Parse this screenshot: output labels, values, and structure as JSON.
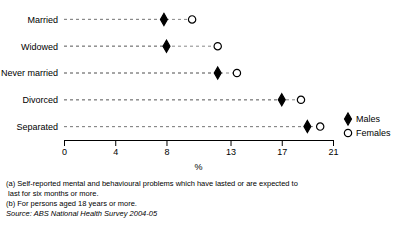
{
  "chart_data": {
    "type": "dot",
    "categories": [
      "Separated",
      "Divorced",
      "Never married",
      "Widowed",
      "Married"
    ],
    "series": [
      {
        "name": "Males",
        "color": "#000000",
        "marker": "diamond",
        "values": [
          19.0,
          17.0,
          12.0,
          8.0,
          7.8
        ]
      },
      {
        "name": "Females",
        "color": "#000000",
        "marker": "open-circle",
        "values": [
          20.0,
          18.5,
          13.5,
          12.0,
          10.0
        ]
      }
    ],
    "color": "#888888",
    "line_style": "dashed",
    "xlabel": "%",
    "xlim": [
      0,
      21
    ],
    "xticks": [
      0,
      4,
      8,
      13,
      17,
      21
    ],
    "grid": false,
    "legend": "lower right",
    "annotations": [
      "(a) Self-reported mental and behavioural problems which have lasted or are expected to",
      " last for six months or more.",
      "(b) For persons aged 18 years or more."
    ],
    "source": "Source: ABS National Health Survey 2004-05"
  }
}
